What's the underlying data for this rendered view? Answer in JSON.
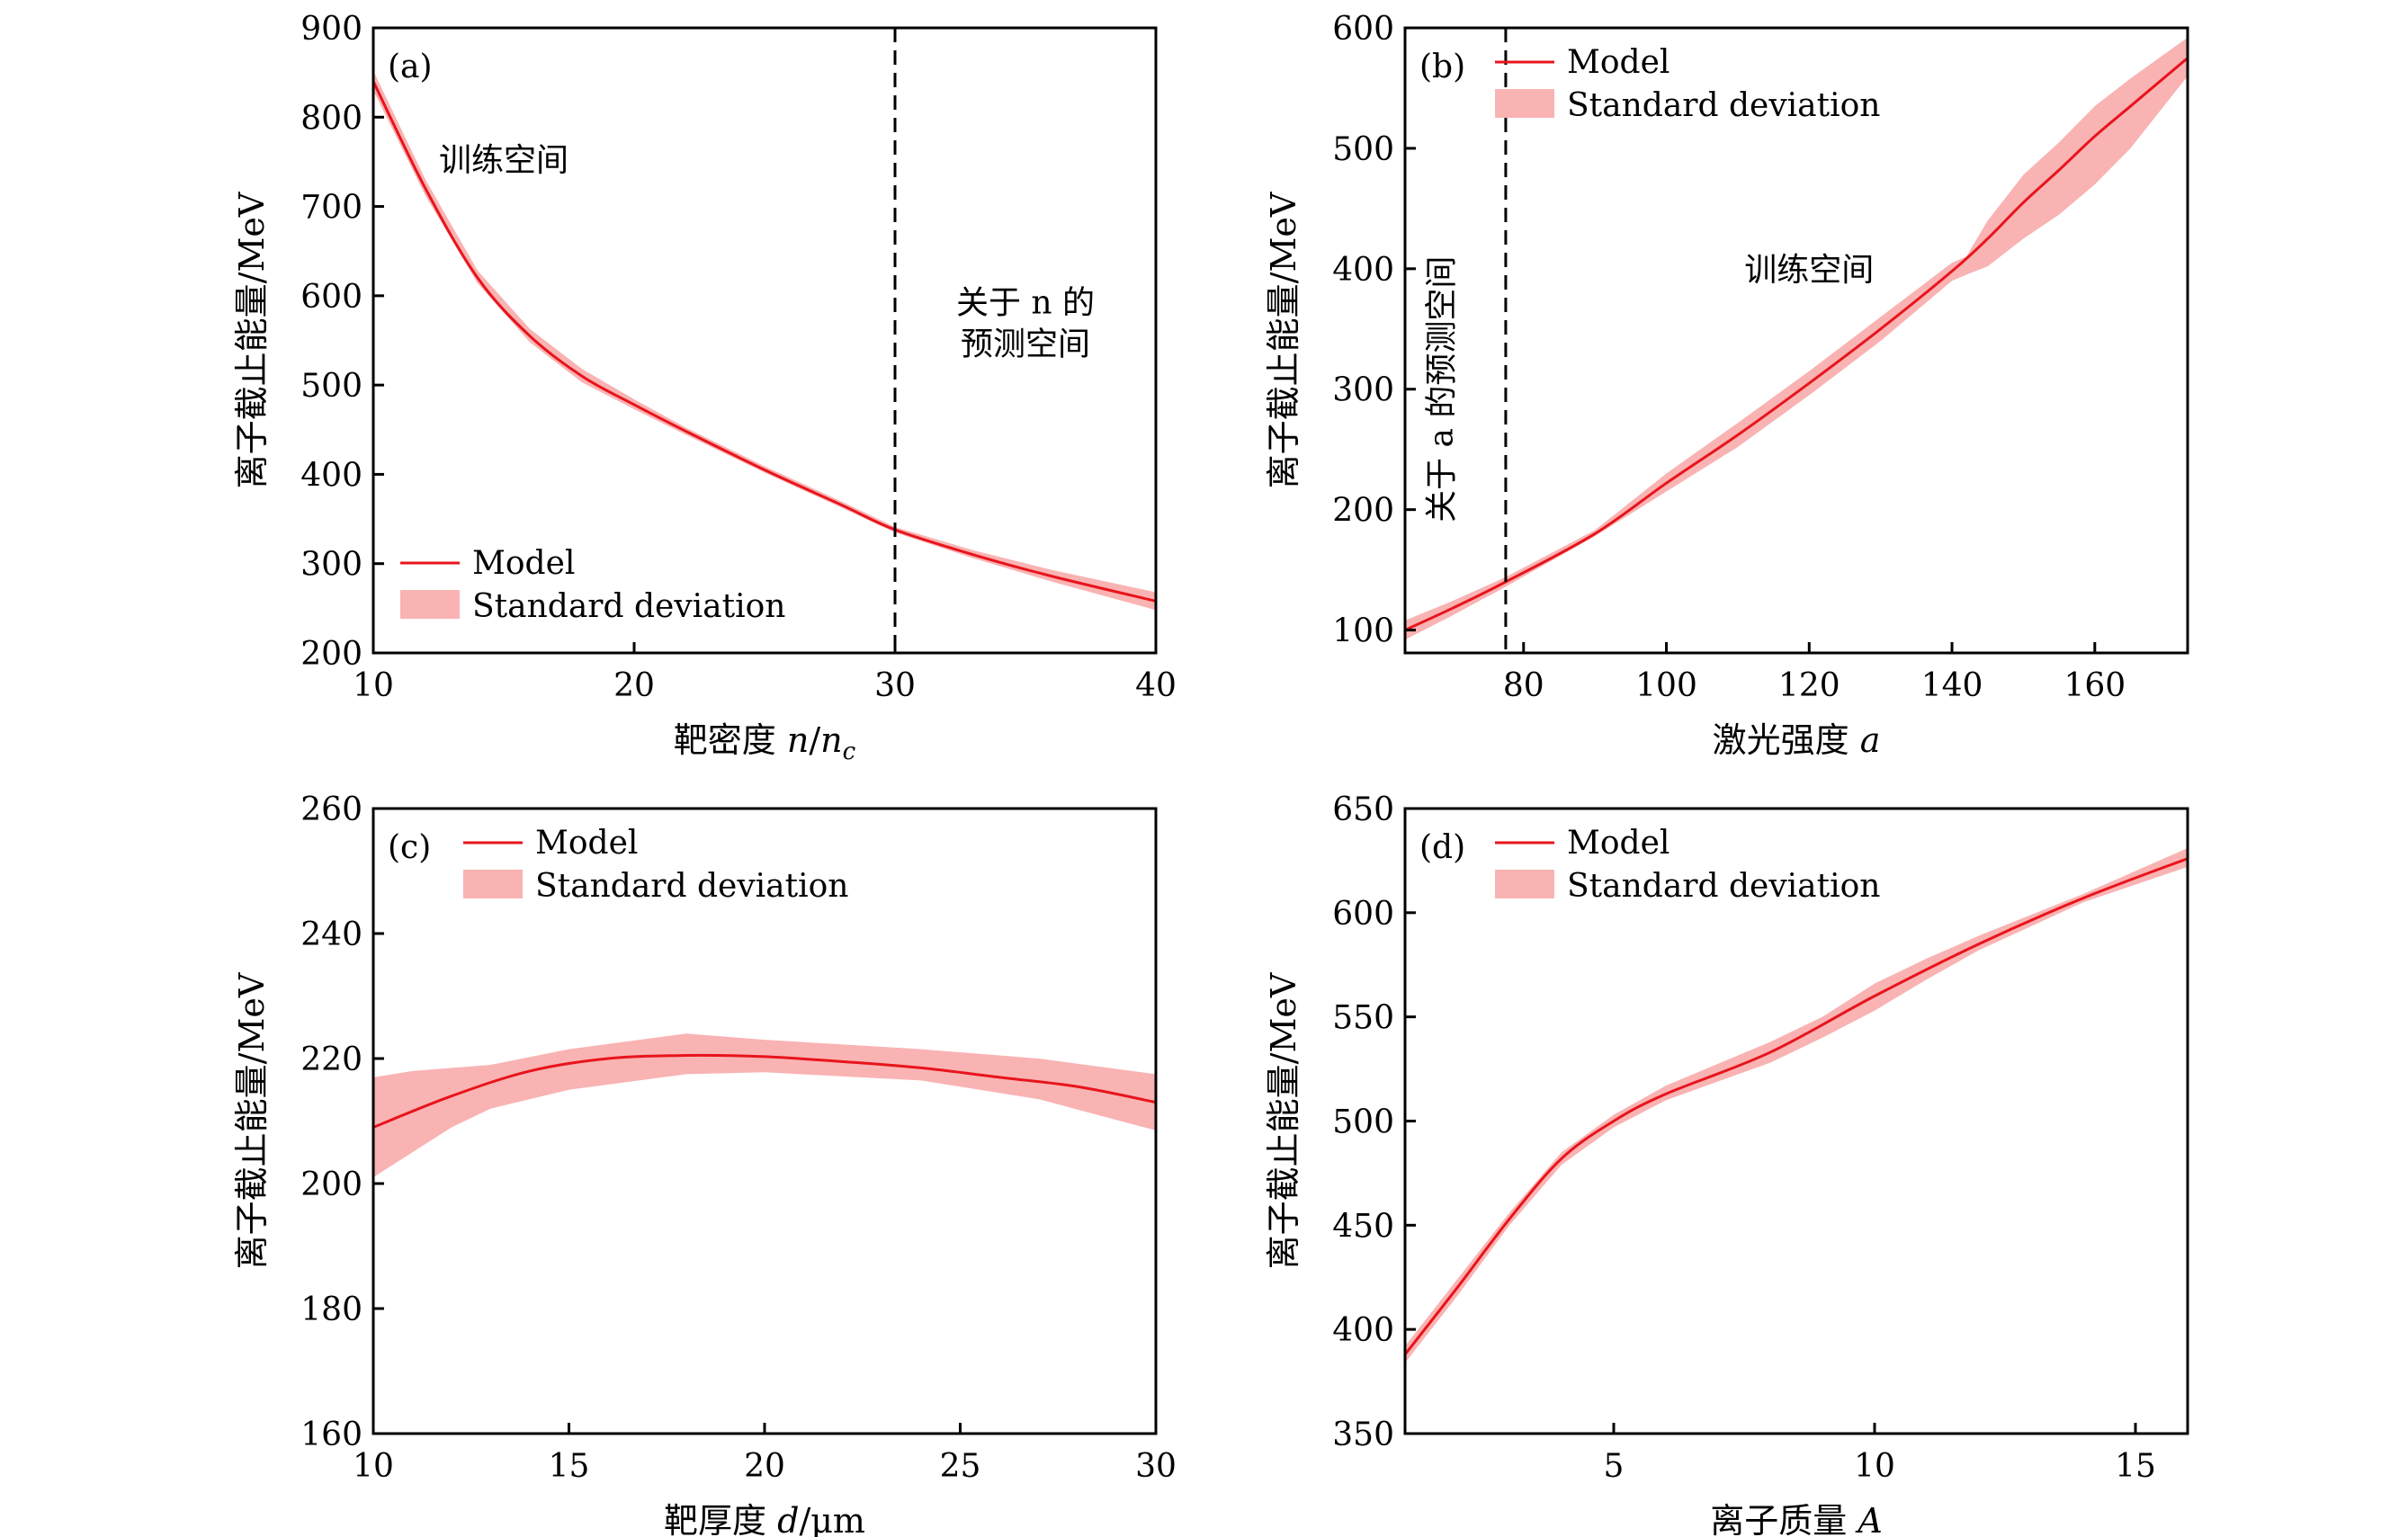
{
  "colors": {
    "model": "#e8141c",
    "band": "#f9b3b3",
    "axis": "#000000"
  },
  "chart_data": [
    {
      "type": "line",
      "panel_label": "(a)",
      "xlabel": "靶密度 n/n_c",
      "xlabel_parts": [
        "靶密度 ",
        "n",
        "/",
        "n",
        "c"
      ],
      "ylabel": "离子截止能量/MeV",
      "xlim": [
        10,
        40
      ],
      "ylim": [
        200,
        900
      ],
      "xticks": [
        10,
        20,
        30,
        40
      ],
      "yticks": [
        200,
        300,
        400,
        500,
        600,
        700,
        800,
        900
      ],
      "legend": {
        "placement": "bottom-left",
        "entries": [
          "Model",
          "Standard deviation"
        ]
      },
      "vline": 30,
      "annotations": [
        {
          "lines": [
            "训练空间"
          ],
          "x": 15,
          "y": 740
        },
        {
          "lines": [
            "关于 n 的",
            "预测空间"
          ],
          "x": 35,
          "y": 580
        }
      ],
      "series": [
        {
          "name": "Model",
          "x": [
            10,
            12,
            14,
            16,
            18,
            20,
            22,
            25,
            28,
            30,
            33,
            36,
            40
          ],
          "y": [
            840,
            720,
            620,
            555,
            510,
            478,
            448,
            405,
            365,
            338,
            310,
            286,
            258
          ]
        },
        {
          "name": "Standard deviation",
          "x": [
            10,
            12,
            14,
            16,
            18,
            20,
            22,
            25,
            28,
            30,
            33,
            36,
            40
          ],
          "lower": [
            830,
            712,
            614,
            548,
            503,
            473,
            444,
            402,
            362,
            335,
            306,
            280,
            248
          ],
          "upper": [
            852,
            730,
            628,
            563,
            518,
            484,
            452,
            409,
            369,
            341,
            315,
            293,
            268
          ]
        }
      ]
    },
    {
      "type": "line",
      "panel_label": "(b)",
      "xlabel": "激光强度 a",
      "xlabel_parts": [
        "激光强度 ",
        "a"
      ],
      "ylabel": "离子截止能量/MeV",
      "xlim": [
        63.4,
        173
      ],
      "ylim": [
        81,
        600
      ],
      "xticks": [
        80,
        100,
        120,
        140,
        160
      ],
      "yticks": [
        100,
        200,
        300,
        400,
        500,
        600
      ],
      "legend": {
        "placement": "top-left",
        "entries": [
          "Model",
          "Standard deviation"
        ]
      },
      "vline": 77.5,
      "annotations": [
        {
          "lines": [
            "训练空间"
          ],
          "x": 120,
          "y": 390
        },
        {
          "lines": [
            "关于 a 的预测空间"
          ],
          "x": 70,
          "y": 300,
          "rotate": -90
        }
      ],
      "series": [
        {
          "name": "Model",
          "x": [
            63.4,
            70,
            77.5,
            90,
            100,
            110,
            120,
            130,
            140,
            145,
            150,
            155,
            160,
            165,
            173
          ],
          "y": [
            100,
            118,
            140,
            180,
            222,
            262,
            305,
            350,
            398,
            425,
            455,
            482,
            510,
            535,
            575
          ]
        },
        {
          "name": "Standard deviation",
          "x": [
            63.4,
            70,
            77.5,
            90,
            100,
            110,
            120,
            130,
            140,
            142,
            145,
            150,
            155,
            160,
            165,
            173
          ],
          "lower": [
            92,
            112,
            136,
            178,
            215,
            252,
            295,
            340,
            390,
            395,
            402,
            425,
            445,
            470,
            500,
            560
          ],
          "upper": [
            108,
            124,
            144,
            183,
            230,
            272,
            315,
            360,
            405,
            410,
            440,
            478,
            505,
            535,
            558,
            592
          ]
        }
      ]
    },
    {
      "type": "line",
      "panel_label": "(c)",
      "xlabel": "靶厚度 d/μm",
      "xlabel_parts": [
        "靶厚度 ",
        "d",
        "/μm"
      ],
      "ylabel": "离子截止能量/MeV",
      "xlim": [
        10,
        30
      ],
      "ylim": [
        160,
        260
      ],
      "xticks": [
        10,
        15,
        20,
        25,
        30
      ],
      "yticks": [
        160,
        180,
        200,
        220,
        240,
        260
      ],
      "legend": {
        "placement": "top-left",
        "entries": [
          "Model",
          "Standard deviation"
        ]
      },
      "series": [
        {
          "name": "Model",
          "x": [
            10,
            12,
            14,
            16,
            18,
            20,
            22,
            24,
            26,
            28,
            30
          ],
          "y": [
            209,
            214,
            218,
            220,
            220.5,
            220.3,
            219.5,
            218.5,
            217,
            215.5,
            213
          ]
        },
        {
          "name": "Standard deviation",
          "x": [
            10,
            11,
            12,
            13,
            15,
            18,
            20,
            24,
            27,
            30
          ],
          "lower": [
            201,
            205,
            209,
            212,
            215,
            217.5,
            217.8,
            216.5,
            213.5,
            208.5
          ],
          "upper": [
            217,
            218,
            218.5,
            219,
            221.5,
            224,
            223,
            221.5,
            220,
            217.5
          ]
        }
      ]
    },
    {
      "type": "line",
      "panel_label": "(d)",
      "xlabel": "离子质量 A",
      "xlabel_parts": [
        "离子质量 ",
        "A"
      ],
      "ylabel": "离子截止能量/MeV",
      "xlim": [
        1,
        16
      ],
      "ylim": [
        350,
        650
      ],
      "xticks": [
        5,
        10,
        15
      ],
      "yticks": [
        350,
        400,
        450,
        500,
        550,
        600,
        650
      ],
      "legend": {
        "placement": "top-left",
        "entries": [
          "Model",
          "Standard deviation"
        ]
      },
      "series": [
        {
          "name": "Model",
          "x": [
            1,
            2,
            3,
            4,
            5,
            6,
            8,
            10,
            12,
            14,
            16
          ],
          "y": [
            388,
            420,
            453,
            482,
            500,
            513,
            533,
            560,
            585,
            607,
            626
          ]
        },
        {
          "name": "Standard deviation",
          "x": [
            1,
            2,
            3,
            4,
            5,
            6,
            8,
            9,
            10,
            11,
            12,
            14,
            16
          ],
          "lower": [
            384,
            416,
            450,
            479,
            497,
            510,
            528,
            540,
            553,
            568,
            582,
            605,
            622
          ],
          "upper": [
            392,
            424,
            456,
            485,
            503,
            517,
            538,
            550,
            566,
            578,
            589,
            609,
            631
          ]
        }
      ]
    }
  ]
}
